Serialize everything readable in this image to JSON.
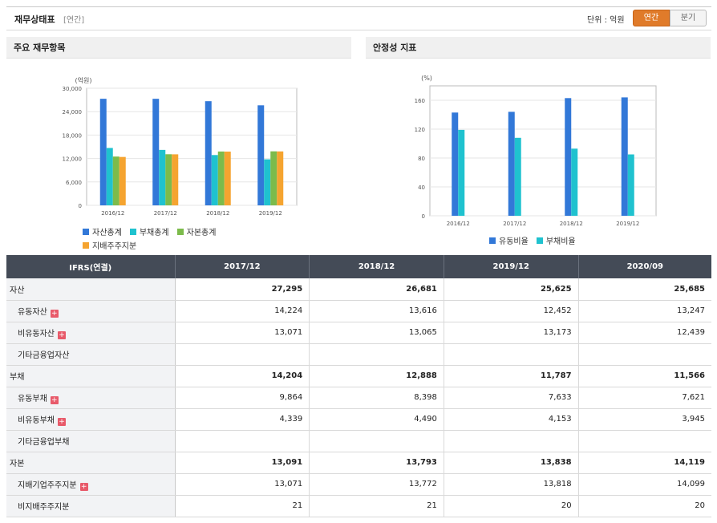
{
  "header": {
    "title": "재무상태표",
    "period": "[연간]",
    "unit_label": "단위 : 억원",
    "btn_annual": "연간",
    "btn_quarter": "분기"
  },
  "panels": {
    "left_title": "주요 재무항목",
    "right_title": "안정성 지표"
  },
  "colors": {
    "blue": "#3278d8",
    "cyan": "#1fc2cf",
    "green": "#7cbb4b",
    "orange": "#f5a430",
    "accent": "#e07b2a",
    "table_header": "#444b57"
  },
  "chart_data": [
    {
      "type": "bar",
      "unit": "(억원)",
      "categories": [
        "2016/12",
        "2017/12",
        "2018/12",
        "2019/12"
      ],
      "ylim": [
        0,
        30000
      ],
      "yticks": [
        "0",
        "6,000",
        "12,000",
        "18,000",
        "24,000",
        "30,000"
      ],
      "grid": true,
      "legend_position": "bottom",
      "series": [
        {
          "name": "자산총계",
          "color": "#3278d8",
          "values": [
            27300,
            27295,
            26681,
            25625
          ]
        },
        {
          "name": "부채총계",
          "color": "#1fc2cf",
          "values": [
            14700,
            14204,
            12888,
            11787
          ]
        },
        {
          "name": "자본총계",
          "color": "#7cbb4b",
          "values": [
            12500,
            13091,
            13793,
            13838
          ]
        },
        {
          "name": "지배주주지분",
          "color": "#f5a430",
          "values": [
            12400,
            13071,
            13772,
            13818
          ]
        }
      ]
    },
    {
      "type": "bar",
      "unit": "(%)",
      "categories": [
        "2016/12",
        "2017/12",
        "2018/12",
        "2019/12"
      ],
      "ylim": [
        0,
        180
      ],
      "yticks": [
        "0",
        "40",
        "80",
        "120",
        "160"
      ],
      "grid": true,
      "legend_position": "bottom",
      "series": [
        {
          "name": "유동비율",
          "color": "#3278d8",
          "values": [
            143,
            144,
            163,
            164
          ]
        },
        {
          "name": "부채비율",
          "color": "#1fc2cf",
          "values": [
            119,
            108,
            93,
            85
          ]
        }
      ]
    }
  ],
  "table": {
    "corner": "IFRS(연결)",
    "columns": [
      "2017/12",
      "2018/12",
      "2019/12",
      "2020/09"
    ],
    "rows": [
      {
        "label": "자산",
        "level": "major",
        "expand": false,
        "values": [
          "27,295",
          "26,681",
          "25,625",
          "25,685"
        ]
      },
      {
        "label": "유동자산",
        "level": "sub",
        "expand": true,
        "values": [
          "14,224",
          "13,616",
          "12,452",
          "13,247"
        ]
      },
      {
        "label": "비유동자산",
        "level": "sub",
        "expand": true,
        "values": [
          "13,071",
          "13,065",
          "13,173",
          "12,439"
        ]
      },
      {
        "label": "기타금융업자산",
        "level": "sub",
        "expand": false,
        "values": [
          "",
          "",
          "",
          ""
        ]
      },
      {
        "label": "부채",
        "level": "major",
        "expand": false,
        "values": [
          "14,204",
          "12,888",
          "11,787",
          "11,566"
        ]
      },
      {
        "label": "유동부채",
        "level": "sub",
        "expand": true,
        "values": [
          "9,864",
          "8,398",
          "7,633",
          "7,621"
        ]
      },
      {
        "label": "비유동부채",
        "level": "sub",
        "expand": true,
        "values": [
          "4,339",
          "4,490",
          "4,153",
          "3,945"
        ]
      },
      {
        "label": "기타금융업부채",
        "level": "sub",
        "expand": false,
        "values": [
          "",
          "",
          "",
          ""
        ]
      },
      {
        "label": "자본",
        "level": "major",
        "expand": false,
        "values": [
          "13,091",
          "13,793",
          "13,838",
          "14,119"
        ]
      },
      {
        "label": "지배기업주주지분",
        "level": "sub",
        "expand": true,
        "values": [
          "13,071",
          "13,772",
          "13,818",
          "14,099"
        ]
      },
      {
        "label": "비지배주주지분",
        "level": "sub",
        "expand": false,
        "values": [
          "21",
          "21",
          "20",
          "20"
        ]
      }
    ]
  }
}
